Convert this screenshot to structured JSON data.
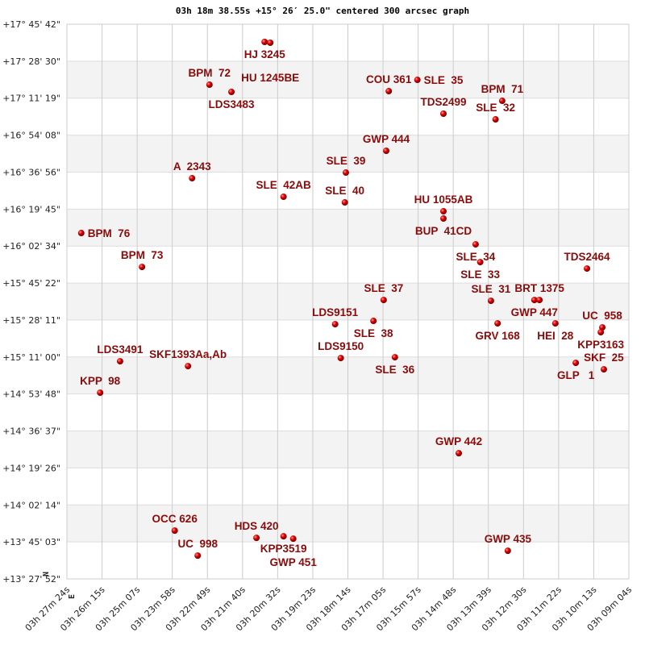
{
  "chart_data": {
    "type": "scatter",
    "title": "03h 18m 38.55s +15° 26′ 25.0\" centered 300 arcsec graph",
    "compass": {
      "north": "N",
      "east": "E"
    },
    "grid": true,
    "x_reversed": true,
    "xlim": [
      "03h 27m 24s",
      "03h 09m 04s"
    ],
    "ylim": [
      "+13° 27' 52\"",
      "+17° 45' 42\""
    ],
    "x_ticks": [
      "03h 27m 24s",
      "03h 26m 15s",
      "03h 25m 07s",
      "03h 23m 58s",
      "03h 22m 49s",
      "03h 21m 40s",
      "03h 20m 32s",
      "03h 19m 23s",
      "03h 18m 14s",
      "03h 17m 05s",
      "03h 15m 57s",
      "03h 14m 48s",
      "03h 13m 39s",
      "03h 12m 30s",
      "03h 11m 22s",
      "03h 10m 13s",
      "03h 09m 04s"
    ],
    "y_ticks": [
      "+17° 45' 42\"",
      "+17° 28' 30\"",
      "+17° 11' 19\"",
      "+16° 54' 08\"",
      "+16° 36' 56\"",
      "+16° 19' 45\"",
      "+16° 02' 34\"",
      "+15° 45' 22\"",
      "+15° 28' 11\"",
      "+15° 11' 00\"",
      "+14° 53' 48\"",
      "+14° 36' 37\"",
      "+14° 19' 26\"",
      "+14° 02' 14\"",
      "+13° 45' 03\"",
      "+13° 27' 52\""
    ],
    "colors": {
      "label": "#8b0a0a",
      "point": "#e00000",
      "band": "#f3f3f3",
      "grid": "#cccccc"
    },
    "points": [
      {
        "name": "HJ 3245",
        "ra": "03h 20m 57s",
        "dec": "+17° 37' 27\""
      },
      {
        "name": "HU 1245BE",
        "ra": "03h 20m 46s",
        "dec": "+17° 37' 05\""
      },
      {
        "name": "BPM  72",
        "ra": "03h 22m 45s",
        "dec": "+17° 17' 35\""
      },
      {
        "name": "LDS3483",
        "ra": "03h 22m 02s",
        "dec": "+17° 14' 13\""
      },
      {
        "name": "COU 361",
        "ra": "03h 16m 54s",
        "dec": "+17° 14' 35\""
      },
      {
        "name": "SLE  35",
        "ra": "03h 15m 58s",
        "dec": "+17° 19' 50\""
      },
      {
        "name": "BPM  71",
        "ra": "03h 13m 12s",
        "dec": "+17° 10' 05\""
      },
      {
        "name": "SLE  32",
        "ra": "03h 13m 25s",
        "dec": "+17° 01' 28\""
      },
      {
        "name": "TDS2499",
        "ra": "03h 15m 07s",
        "dec": "+17° 04' 06\""
      },
      {
        "name": "GWP 444",
        "ra": "03h 16m 59s",
        "dec": "+16° 46' 51\""
      },
      {
        "name": "SLE  39",
        "ra": "03h 18m 18s",
        "dec": "+16° 36' 44\""
      },
      {
        "name": "A  2343",
        "ra": "03h 23m 19s",
        "dec": "+16° 34' 06\""
      },
      {
        "name": "SLE  42AB",
        "ra": "03h 20m 20s",
        "dec": "+16° 25' 29\""
      },
      {
        "name": "SLE  40",
        "ra": "03h 18m 20s",
        "dec": "+16° 22' 52\""
      },
      {
        "name": "HU 1055AB",
        "ra": "03h 15m 07s",
        "dec": "+16° 18' 44\""
      },
      {
        "name": "BUP  41CD",
        "ra": "03h 15m 07s",
        "dec": "+16° 15' 22\""
      },
      {
        "name": "BPM  76",
        "ra": "03h 26m 56s",
        "dec": "+16° 08' 37\""
      },
      {
        "name": "SLE  34",
        "ra": "03h 14m 04s",
        "dec": "+16° 03' 22\""
      },
      {
        "name": "SLE  33",
        "ra": "03h 13m 55s",
        "dec": "+15° 55' 07\""
      },
      {
        "name": "BPM  73",
        "ra": "03h 24m 57s",
        "dec": "+15° 52' 52\""
      },
      {
        "name": "TDS2464",
        "ra": "03h 10m 26s",
        "dec": "+15° 52' 07\""
      },
      {
        "name": "SLE  37",
        "ra": "03h 17m 04s",
        "dec": "+15° 37' 30\""
      },
      {
        "name": "SLE  31",
        "ra": "03h 13m 34s",
        "dec": "+15° 37' 08\""
      },
      {
        "name": "GWP 447",
        "ra": "03h 12m 09s",
        "dec": "+15° 37' 30\""
      },
      {
        "name": "BRT 1375",
        "ra": "03h 11m 59s",
        "dec": "+15° 37' 30\""
      },
      {
        "name": "LDS9151",
        "ra": "03h 18m 39s",
        "dec": "+15° 26' 16\""
      },
      {
        "name": "SLE  38",
        "ra": "03h 17m 24s",
        "dec": "+15° 27' 46\""
      },
      {
        "name": "GRV 168",
        "ra": "03h 13m 21s",
        "dec": "+15° 26' 38\""
      },
      {
        "name": "HEI  28",
        "ra": "03h 11m 28s",
        "dec": "+15° 26' 38\""
      },
      {
        "name": "UC  958",
        "ra": "03h 09m 56s",
        "dec": "+15° 24' 46\""
      },
      {
        "name": "KPP3163",
        "ra": "03h 09m 59s",
        "dec": "+15° 22' 31\""
      },
      {
        "name": "LDS3491",
        "ra": "03h 25m 40s",
        "dec": "+15° 09' 01\""
      },
      {
        "name": "SKF1393Aa,Ab",
        "ra": "03h 23m 27s",
        "dec": "+15° 06' 46\""
      },
      {
        "name": "LDS9150",
        "ra": "03h 18m 28s",
        "dec": "+15° 10' 31\""
      },
      {
        "name": "SLE  36",
        "ra": "03h 16m 42s",
        "dec": "+15° 10' 54\""
      },
      {
        "name": "GLP   1",
        "ra": "03h 10m 48s",
        "dec": "+15° 08' 16\""
      },
      {
        "name": "SKF  25",
        "ra": "03h 09m 53s",
        "dec": "+15° 05' 16\""
      },
      {
        "name": "KPP  98",
        "ra": "03h 26m 19s",
        "dec": "+14° 54' 24\""
      },
      {
        "name": "GWP 442",
        "ra": "03h 14m 37s",
        "dec": "+14° 26' 17\""
      },
      {
        "name": "OCC 626",
        "ra": "03h 23m 53s",
        "dec": "+13° 50' 18\""
      },
      {
        "name": "HDS 420",
        "ra": "03h 21m 13s",
        "dec": "+13° 46' 56\""
      },
      {
        "name": "KPP3519",
        "ra": "03h 20m 20s",
        "dec": "+13° 47' 40\""
      },
      {
        "name": "GWP 451",
        "ra": "03h 20m 01s",
        "dec": "+13° 46' 33\""
      },
      {
        "name": "UC  998",
        "ra": "03h 23m 08s",
        "dec": "+13° 38' 41\""
      },
      {
        "name": "GWP 435",
        "ra": "03h 13m 01s",
        "dec": "+13° 40' 56\""
      }
    ]
  }
}
